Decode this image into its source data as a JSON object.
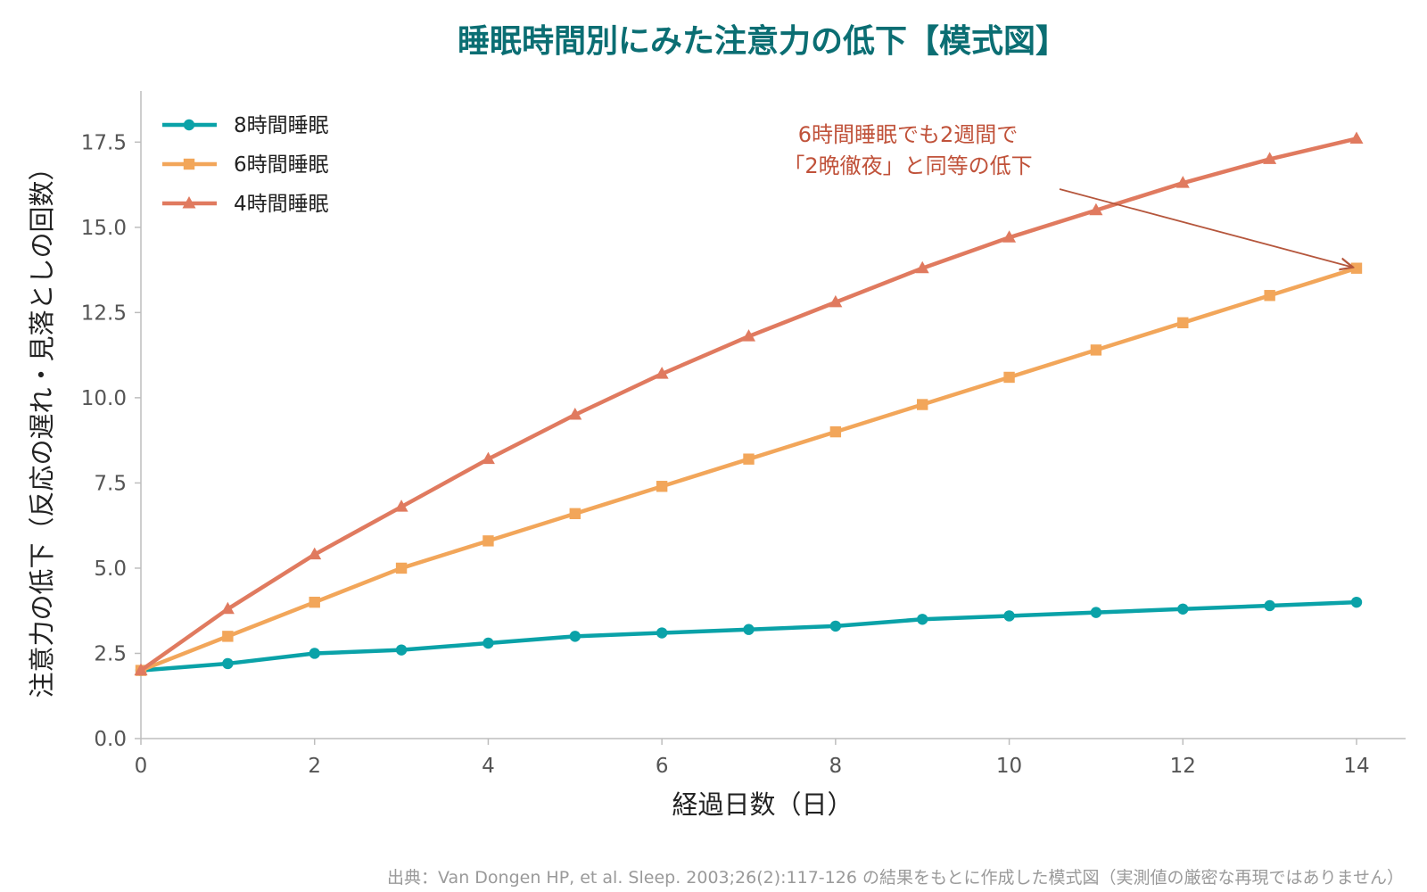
{
  "chart_data": {
    "type": "line",
    "title": "睡眠時間別にみた注意力の低下【模式図】",
    "xlabel": "経過日数（日）",
    "ylabel": "注意力の低下（反応の遅れ・見落としの回数）",
    "xlim": [
      0,
      14
    ],
    "ylim": [
      0,
      19
    ],
    "x_ticks": [
      0,
      2,
      4,
      6,
      8,
      10,
      12,
      14
    ],
    "y_ticks": [
      0.0,
      2.5,
      5.0,
      7.5,
      10.0,
      12.5,
      15.0,
      17.5
    ],
    "y_tick_labels": [
      "0.0",
      "2.5",
      "5.0",
      "7.5",
      "10.0",
      "12.5",
      "15.0",
      "17.5"
    ],
    "grid": false,
    "legend_position": "top-left",
    "x": [
      0,
      1,
      2,
      3,
      4,
      5,
      6,
      7,
      8,
      9,
      10,
      11,
      12,
      13,
      14
    ],
    "series": [
      {
        "name": "8時間睡眠",
        "marker": "circle",
        "color": "#0aa2a8",
        "values": [
          2.0,
          2.2,
          2.5,
          2.6,
          2.8,
          3.0,
          3.1,
          3.2,
          3.3,
          3.5,
          3.6,
          3.7,
          3.8,
          3.9,
          4.0
        ]
      },
      {
        "name": "6時間睡眠",
        "marker": "square",
        "color": "#f2a65a",
        "values": [
          2.0,
          3.0,
          4.0,
          5.0,
          5.8,
          6.6,
          7.4,
          8.2,
          9.0,
          9.8,
          10.6,
          11.4,
          12.2,
          13.0,
          13.8
        ]
      },
      {
        "name": "4時間睡眠",
        "marker": "triangle",
        "color": "#e07a5f",
        "values": [
          2.0,
          3.8,
          5.4,
          6.8,
          8.2,
          9.5,
          10.7,
          11.8,
          12.8,
          13.8,
          14.7,
          15.5,
          16.3,
          17.0,
          17.6
        ]
      }
    ],
    "annotation": {
      "lines": [
        "6時間睡眠でも2週間で",
        "「2晩徹夜」と同等の低下"
      ],
      "color": "#c0523a",
      "arrow_target": {
        "x": 14,
        "y": 13.8
      }
    },
    "source": "出典：Van Dongen HP, et al. Sleep. 2003;26(2):117-126 の結果をもとに作成した模式図（実測値の厳密な再現ではありません）"
  }
}
